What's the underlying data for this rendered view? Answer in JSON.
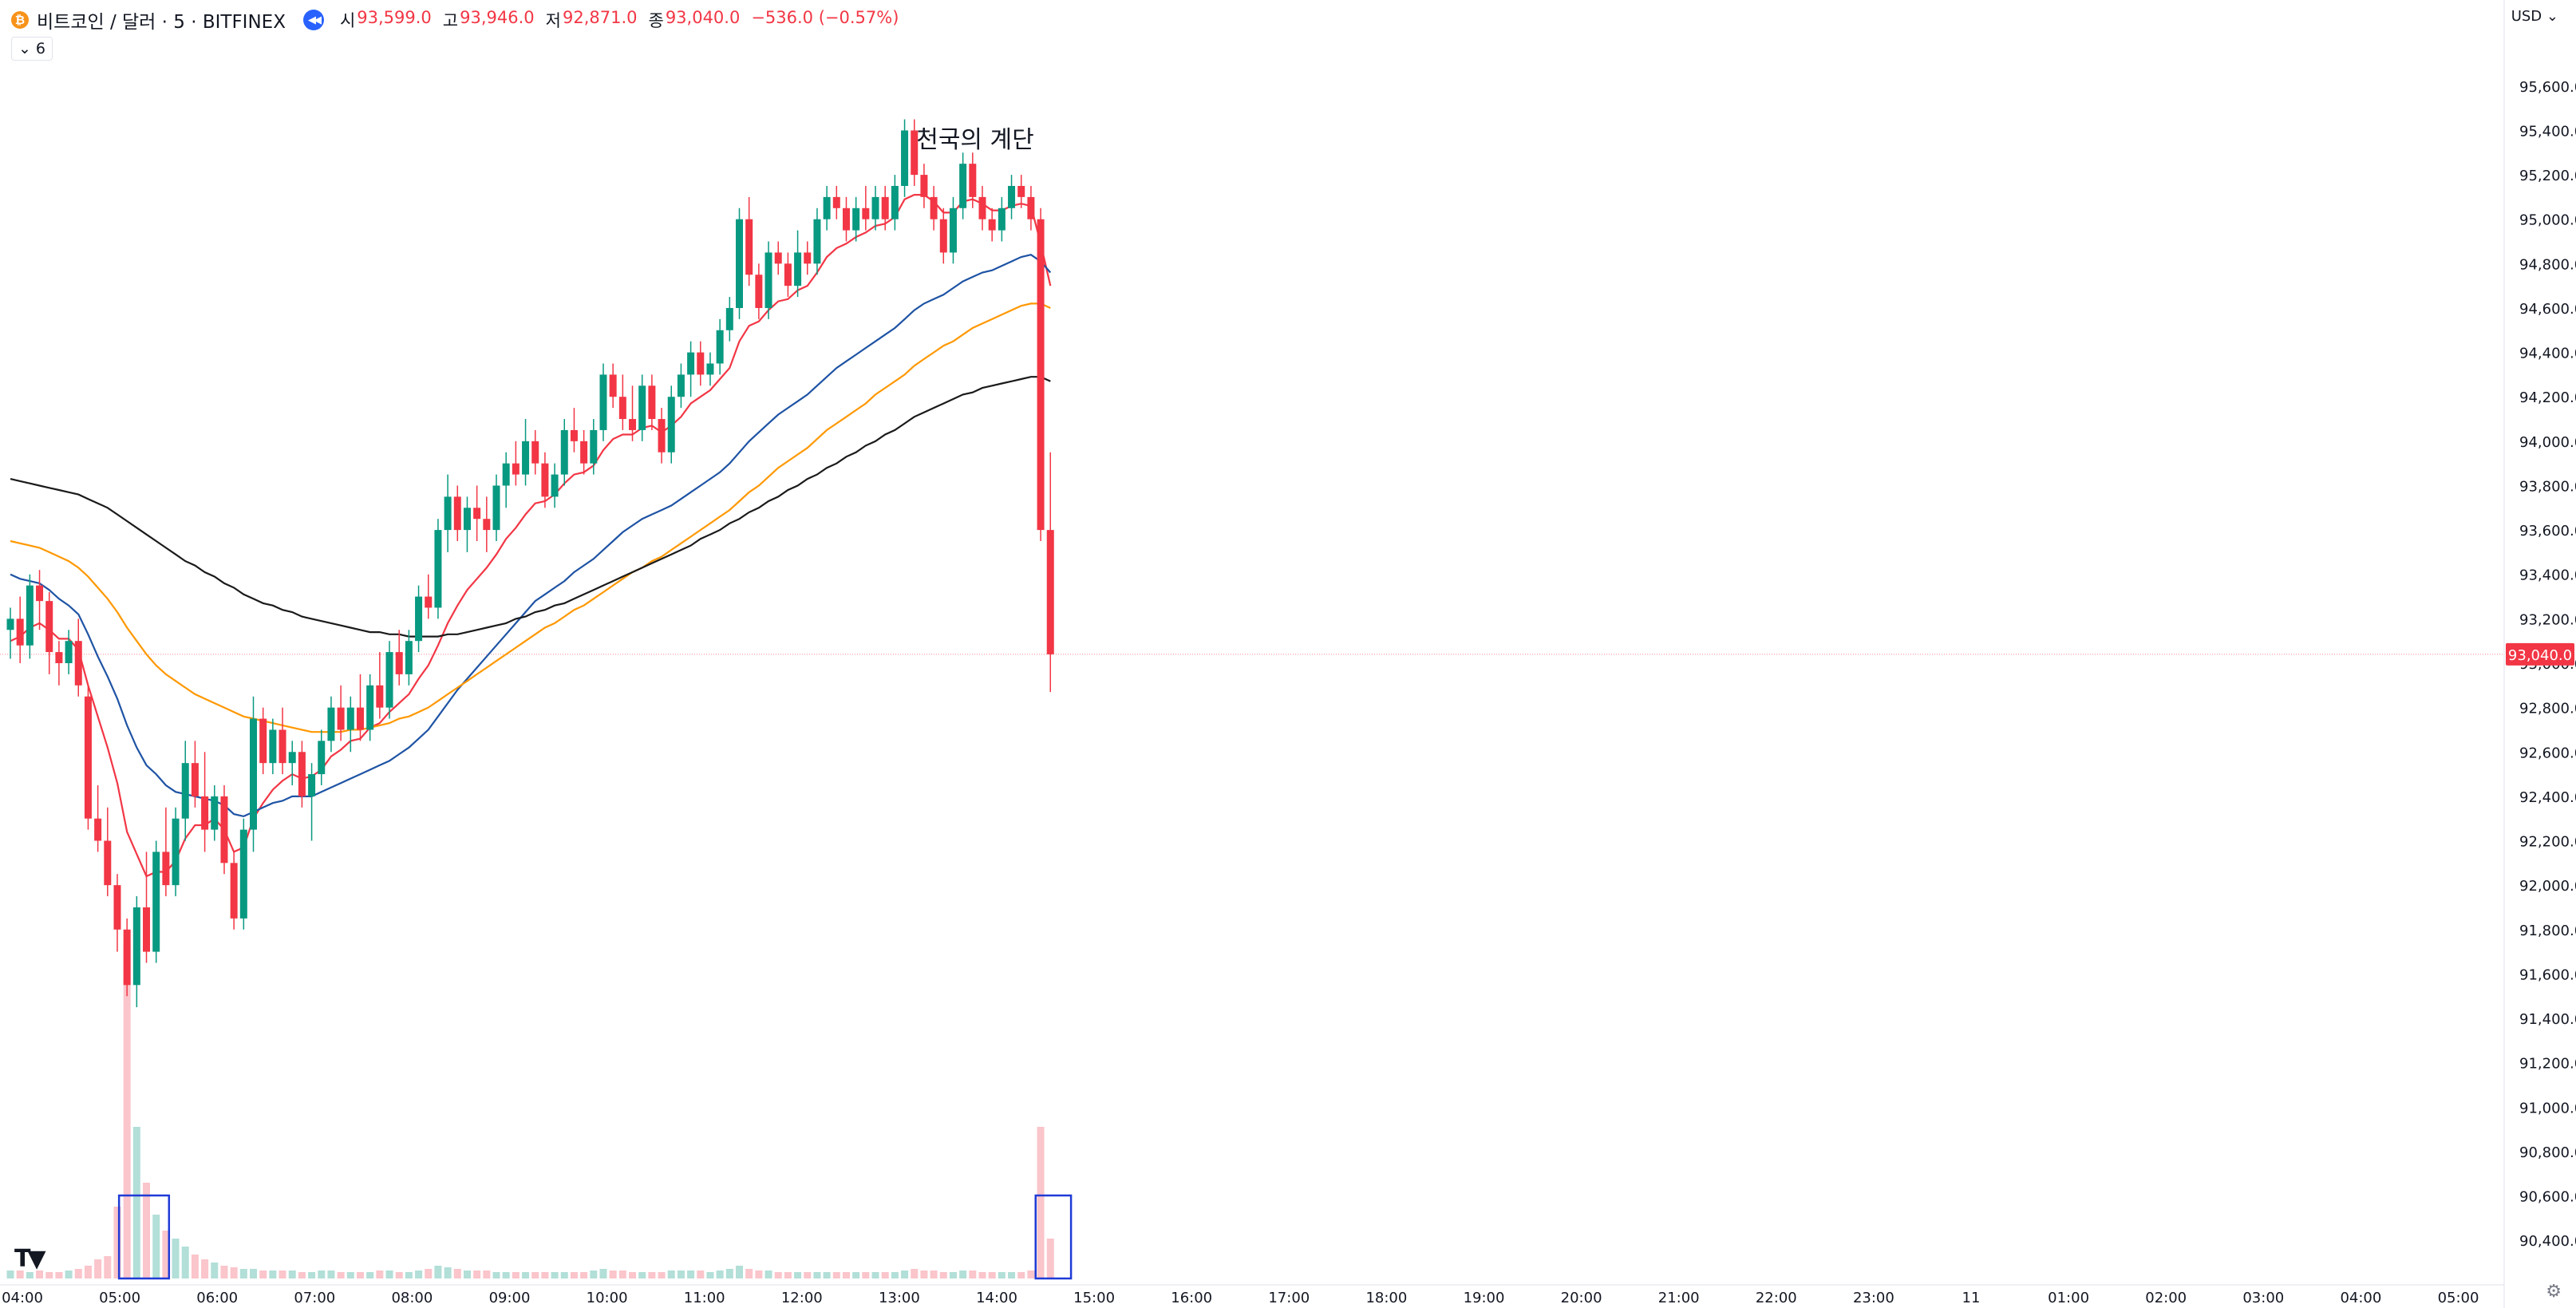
{
  "header": {
    "symbol": "비트코인 / 달러 · 5 · BITFINEX",
    "coin_icon": "bitcoin-icon",
    "ohlc": [
      {
        "label": "시",
        "value": "93,599.0"
      },
      {
        "label": "고",
        "value": "93,946.0"
      },
      {
        "label": "저",
        "value": "92,871.0"
      },
      {
        "label": "종",
        "value": "93,040.0"
      },
      {
        "label": "",
        "value": "−536.0 (−0.57%)"
      }
    ],
    "indicator_count": "6",
    "currency": "USD"
  },
  "colors": {
    "up": "#089981",
    "down": "#f23645",
    "volume_up": "#b2dfd8",
    "volume_down": "#fac5cb",
    "ema_red": "#f23645",
    "ema_blue": "#1e53a4",
    "ema_orange": "#ff9800",
    "ema_black": "#1a1a1a",
    "box": "#1f3bd6"
  },
  "chart_data": {
    "type": "candlestick",
    "title": "",
    "annotation": "천국의 계단",
    "interval": "5m",
    "y_ticks": [
      "95,600.0",
      "95,400.0",
      "95,200.0",
      "95,000.0",
      "94,800.0",
      "94,600.0",
      "94,400.0",
      "94,200.0",
      "94,000.0",
      "93,800.0",
      "93,600.0",
      "93,400.0",
      "93,200.0",
      "93,000.0",
      "92,800.0",
      "92,600.0",
      "92,400.0",
      "92,200.0",
      "92,000.0",
      "91,800.0",
      "91,600.0",
      "91,400.0",
      "91,200.0",
      "91,000.0",
      "90,800.0",
      "90,600.0",
      "90,400.0"
    ],
    "y_range": [
      90300,
      95700
    ],
    "x_ticks": [
      "04:00",
      "05:00",
      "06:00",
      "07:00",
      "08:00",
      "09:00",
      "10:00",
      "11:00",
      "12:00",
      "13:00",
      "14:00",
      "15:00",
      "16:00",
      "17:00",
      "18:00",
      "19:00",
      "20:00",
      "21:00",
      "22:00",
      "23:00",
      "11",
      "01:00",
      "02:00",
      "03:00",
      "04:00",
      "05:00"
    ],
    "last_price_label": "93,040.0",
    "last_price": 93040,
    "ohlc": [
      [
        93150,
        93250,
        93020,
        93200
      ],
      [
        93200,
        93300,
        93000,
        93080
      ],
      [
        93080,
        93400,
        93020,
        93350
      ],
      [
        93350,
        93420,
        93150,
        93280
      ],
      [
        93280,
        93320,
        92950,
        93050
      ],
      [
        93050,
        93100,
        92900,
        93000
      ],
      [
        93000,
        93150,
        92950,
        93100
      ],
      [
        93100,
        93200,
        92850,
        92900
      ],
      [
        92850,
        92900,
        92250,
        92300
      ],
      [
        92300,
        92450,
        92150,
        92200
      ],
      [
        92200,
        92350,
        91950,
        92000
      ],
      [
        92000,
        92050,
        91700,
        91800
      ],
      [
        91800,
        91850,
        91500,
        91550
      ],
      [
        91550,
        91950,
        91450,
        91900
      ],
      [
        91900,
        92150,
        91650,
        91700
      ],
      [
        91700,
        92200,
        91650,
        92150
      ],
      [
        92150,
        92350,
        91950,
        92000
      ],
      [
        92000,
        92350,
        91950,
        92300
      ],
      [
        92300,
        92650,
        92200,
        92550
      ],
      [
        92550,
        92650,
        92350,
        92400
      ],
      [
        92400,
        92600,
        92150,
        92250
      ],
      [
        92250,
        92450,
        92200,
        92400
      ],
      [
        92400,
        92450,
        92050,
        92100
      ],
      [
        92100,
        92150,
        91800,
        91850
      ],
      [
        91850,
        92300,
        91800,
        92250
      ],
      [
        92250,
        92850,
        92150,
        92750
      ],
      [
        92750,
        92800,
        92500,
        92550
      ],
      [
        92550,
        92750,
        92500,
        92700
      ],
      [
        92700,
        92800,
        92500,
        92550
      ],
      [
        92550,
        92650,
        92450,
        92600
      ],
      [
        92600,
        92650,
        92350,
        92400
      ],
      [
        92400,
        92550,
        92200,
        92500
      ],
      [
        92500,
        92700,
        92450,
        92650
      ],
      [
        92650,
        92850,
        92600,
        92800
      ],
      [
        92800,
        92900,
        92650,
        92700
      ],
      [
        92700,
        92850,
        92600,
        92800
      ],
      [
        92800,
        92950,
        92650,
        92700
      ],
      [
        92700,
        92950,
        92650,
        92900
      ],
      [
        92900,
        93050,
        92750,
        92800
      ],
      [
        92800,
        93100,
        92750,
        93050
      ],
      [
        93050,
        93150,
        92900,
        92950
      ],
      [
        92950,
        93150,
        92900,
        93100
      ],
      [
        93100,
        93350,
        93050,
        93300
      ],
      [
        93300,
        93400,
        93200,
        93250
      ],
      [
        93250,
        93650,
        93200,
        93600
      ],
      [
        93600,
        93850,
        93500,
        93750
      ],
      [
        93750,
        93800,
        93550,
        93600
      ],
      [
        93600,
        93750,
        93500,
        93700
      ],
      [
        93700,
        93800,
        93550,
        93650
      ],
      [
        93650,
        93750,
        93500,
        93600
      ],
      [
        93600,
        93850,
        93550,
        93800
      ],
      [
        93800,
        93950,
        93700,
        93900
      ],
      [
        93900,
        94000,
        93800,
        93850
      ],
      [
        93850,
        94100,
        93800,
        94000
      ],
      [
        94000,
        94050,
        93850,
        93900
      ],
      [
        93900,
        93950,
        93700,
        93750
      ],
      [
        93750,
        93900,
        93700,
        93850
      ],
      [
        93850,
        94100,
        93800,
        94050
      ],
      [
        94050,
        94150,
        93950,
        94000
      ],
      [
        94000,
        94050,
        93850,
        93900
      ],
      [
        93900,
        94100,
        93850,
        94050
      ],
      [
        94050,
        94350,
        94000,
        94300
      ],
      [
        94300,
        94350,
        94150,
        94200
      ],
      [
        94200,
        94300,
        94050,
        94100
      ],
      [
        94100,
        94250,
        94000,
        94050
      ],
      [
        94050,
        94300,
        94000,
        94250
      ],
      [
        94250,
        94300,
        94050,
        94100
      ],
      [
        94100,
        94150,
        93900,
        93950
      ],
      [
        93950,
        94250,
        93900,
        94200
      ],
      [
        94200,
        94350,
        94150,
        94300
      ],
      [
        94300,
        94450,
        94200,
        94400
      ],
      [
        94400,
        94450,
        94250,
        94300
      ],
      [
        94300,
        94400,
        94250,
        94350
      ],
      [
        94350,
        94550,
        94300,
        94500
      ],
      [
        94500,
        94650,
        94450,
        94600
      ],
      [
        94600,
        95050,
        94550,
        95000
      ],
      [
        95000,
        95100,
        94700,
        94750
      ],
      [
        94750,
        94800,
        94550,
        94600
      ],
      [
        94600,
        94900,
        94550,
        94850
      ],
      [
        94850,
        94900,
        94750,
        94800
      ],
      [
        94800,
        94850,
        94650,
        94700
      ],
      [
        94700,
        94950,
        94650,
        94850
      ],
      [
        94850,
        94900,
        94750,
        94800
      ],
      [
        94800,
        95050,
        94750,
        95000
      ],
      [
        95000,
        95150,
        94950,
        95100
      ],
      [
        95100,
        95150,
        95000,
        95050
      ],
      [
        95050,
        95100,
        94900,
        94950
      ],
      [
        94950,
        95100,
        94900,
        95050
      ],
      [
        95050,
        95150,
        94950,
        95000
      ],
      [
        95000,
        95150,
        94950,
        95100
      ],
      [
        95100,
        95150,
        94950,
        95000
      ],
      [
        95000,
        95200,
        94950,
        95150
      ],
      [
        95150,
        95450,
        95100,
        95400
      ],
      [
        95400,
        95450,
        95150,
        95200
      ],
      [
        95200,
        95250,
        95050,
        95100
      ],
      [
        95100,
        95150,
        94950,
        95000
      ],
      [
        95000,
        95050,
        94800,
        94850
      ],
      [
        94850,
        95100,
        94800,
        95050
      ],
      [
        95050,
        95300,
        95000,
        95250
      ],
      [
        95250,
        95300,
        95050,
        95100
      ],
      [
        95100,
        95150,
        94950,
        95000
      ],
      [
        95000,
        95050,
        94900,
        94950
      ],
      [
        94950,
        95100,
        94900,
        95050
      ],
      [
        95050,
        95200,
        95000,
        95150
      ],
      [
        95150,
        95200,
        95050,
        95100
      ],
      [
        95100,
        95150,
        94950,
        95000
      ],
      [
        95000,
        95050,
        93550,
        93600
      ],
      [
        93600,
        93950,
        92870,
        93040
      ]
    ],
    "volume": [
      5,
      5,
      4,
      5,
      4,
      4,
      5,
      6,
      8,
      12,
      14,
      45,
      210,
      95,
      60,
      40,
      30,
      25,
      20,
      15,
      12,
      10,
      8,
      7,
      6,
      6,
      5,
      5,
      5,
      5,
      4,
      4,
      5,
      5,
      4,
      4,
      4,
      4,
      5,
      5,
      4,
      4,
      5,
      6,
      8,
      7,
      6,
      5,
      5,
      5,
      4,
      4,
      4,
      4,
      4,
      4,
      4,
      4,
      4,
      4,
      5,
      6,
      5,
      5,
      4,
      4,
      4,
      4,
      5,
      5,
      5,
      5,
      4,
      5,
      6,
      8,
      6,
      5,
      5,
      4,
      4,
      4,
      4,
      4,
      4,
      4,
      4,
      4,
      4,
      4,
      4,
      4,
      5,
      6,
      5,
      5,
      4,
      4,
      5,
      5,
      4,
      4,
      4,
      4,
      4,
      5,
      95,
      25
    ],
    "series": [
      {
        "type": "ema",
        "color": "ema_red",
        "values": [
          93100,
          93120,
          93160,
          93180,
          93150,
          93110,
          93110,
          93060,
          92900,
          92760,
          92620,
          92460,
          92240,
          92140,
          92040,
          92060,
          92060,
          92110,
          92210,
          92270,
          92270,
          92300,
          92250,
          92150,
          92170,
          92300,
          92370,
          92430,
          92470,
          92500,
          92480,
          92490,
          92520,
          92580,
          92610,
          92650,
          92660,
          92710,
          92730,
          92780,
          92820,
          92860,
          92930,
          92990,
          93080,
          93180,
          93260,
          93330,
          93380,
          93430,
          93490,
          93560,
          93610,
          93670,
          93720,
          93730,
          93760,
          93810,
          93850,
          93860,
          93890,
          93960,
          94010,
          94030,
          94030,
          94060,
          94070,
          94040,
          94070,
          94110,
          94170,
          94200,
          94230,
          94280,
          94330,
          94450,
          94520,
          94540,
          94590,
          94630,
          94640,
          94680,
          94700,
          94760,
          94830,
          94870,
          94890,
          94920,
          94940,
          94970,
          94980,
          95010,
          95090,
          95110,
          95110,
          95080,
          95030,
          95030,
          95080,
          95090,
          95070,
          95040,
          95040,
          95060,
          95070,
          95060,
          94890,
          94700
        ]
      },
      {
        "type": "ema",
        "color": "ema_blue",
        "values": [
          93400,
          93380,
          93370,
          93360,
          93330,
          93290,
          93260,
          93220,
          93130,
          93030,
          92940,
          92840,
          92720,
          92620,
          92540,
          92500,
          92450,
          92420,
          92410,
          92400,
          92390,
          92380,
          92360,
          92320,
          92310,
          92330,
          92350,
          92370,
          92380,
          92400,
          92400,
          92400,
          92420,
          92440,
          92460,
          92480,
          92500,
          92520,
          92540,
          92560,
          92590,
          92620,
          92660,
          92700,
          92760,
          92820,
          92880,
          92930,
          92980,
          93030,
          93080,
          93130,
          93180,
          93230,
          93280,
          93310,
          93340,
          93370,
          93410,
          93440,
          93470,
          93510,
          93550,
          93590,
          93620,
          93650,
          93670,
          93690,
          93710,
          93740,
          93770,
          93800,
          93830,
          93860,
          93900,
          93950,
          94000,
          94040,
          94080,
          94120,
          94150,
          94180,
          94210,
          94250,
          94290,
          94330,
          94360,
          94390,
          94420,
          94450,
          94480,
          94510,
          94550,
          94590,
          94620,
          94640,
          94660,
          94690,
          94720,
          94740,
          94760,
          94770,
          94790,
          94810,
          94830,
          94840,
          94810,
          94760
        ]
      },
      {
        "type": "ema",
        "color": "ema_orange",
        "values": [
          93550,
          93540,
          93530,
          93520,
          93500,
          93480,
          93460,
          93430,
          93390,
          93340,
          93290,
          93230,
          93160,
          93100,
          93040,
          92990,
          92950,
          92920,
          92890,
          92860,
          92840,
          92820,
          92800,
          92780,
          92760,
          92750,
          92740,
          92730,
          92720,
          92710,
          92700,
          92690,
          92690,
          92690,
          92690,
          92700,
          92700,
          92710,
          92720,
          92730,
          92750,
          92760,
          92780,
          92800,
          92830,
          92860,
          92890,
          92920,
          92950,
          92980,
          93010,
          93040,
          93070,
          93100,
          93130,
          93160,
          93180,
          93210,
          93240,
          93260,
          93290,
          93320,
          93350,
          93380,
          93410,
          93430,
          93460,
          93480,
          93510,
          93540,
          93570,
          93600,
          93630,
          93660,
          93690,
          93730,
          93770,
          93800,
          93840,
          93880,
          93910,
          93940,
          93970,
          94010,
          94050,
          94080,
          94110,
          94140,
          94170,
          94210,
          94240,
          94270,
          94300,
          94340,
          94370,
          94400,
          94430,
          94450,
          94480,
          94510,
          94530,
          94550,
          94570,
          94590,
          94610,
          94620,
          94620,
          94600
        ]
      },
      {
        "type": "ema",
        "color": "ema_black",
        "values": [
          93830,
          93820,
          93810,
          93800,
          93790,
          93780,
          93770,
          93760,
          93740,
          93720,
          93700,
          93670,
          93640,
          93610,
          93580,
          93550,
          93520,
          93490,
          93460,
          93440,
          93410,
          93390,
          93360,
          93340,
          93310,
          93290,
          93270,
          93260,
          93240,
          93230,
          93210,
          93200,
          93190,
          93180,
          93170,
          93160,
          93150,
          93140,
          93140,
          93130,
          93130,
          93120,
          93120,
          93120,
          93120,
          93130,
          93130,
          93140,
          93150,
          93160,
          93170,
          93180,
          93200,
          93210,
          93230,
          93240,
          93260,
          93270,
          93290,
          93310,
          93330,
          93350,
          93370,
          93390,
          93410,
          93430,
          93450,
          93470,
          93490,
          93510,
          93530,
          93560,
          93580,
          93600,
          93630,
          93650,
          93680,
          93700,
          93730,
          93750,
          93780,
          93800,
          93830,
          93850,
          93880,
          93900,
          93930,
          93950,
          93980,
          94000,
          94030,
          94050,
          94080,
          94110,
          94130,
          94150,
          94170,
          94190,
          94210,
          94220,
          94240,
          94250,
          94260,
          94270,
          94280,
          94290,
          94290,
          94270
        ]
      }
    ],
    "volume_highlight_boxes": [
      "05:15-05:55",
      "22:35-22:45"
    ]
  }
}
